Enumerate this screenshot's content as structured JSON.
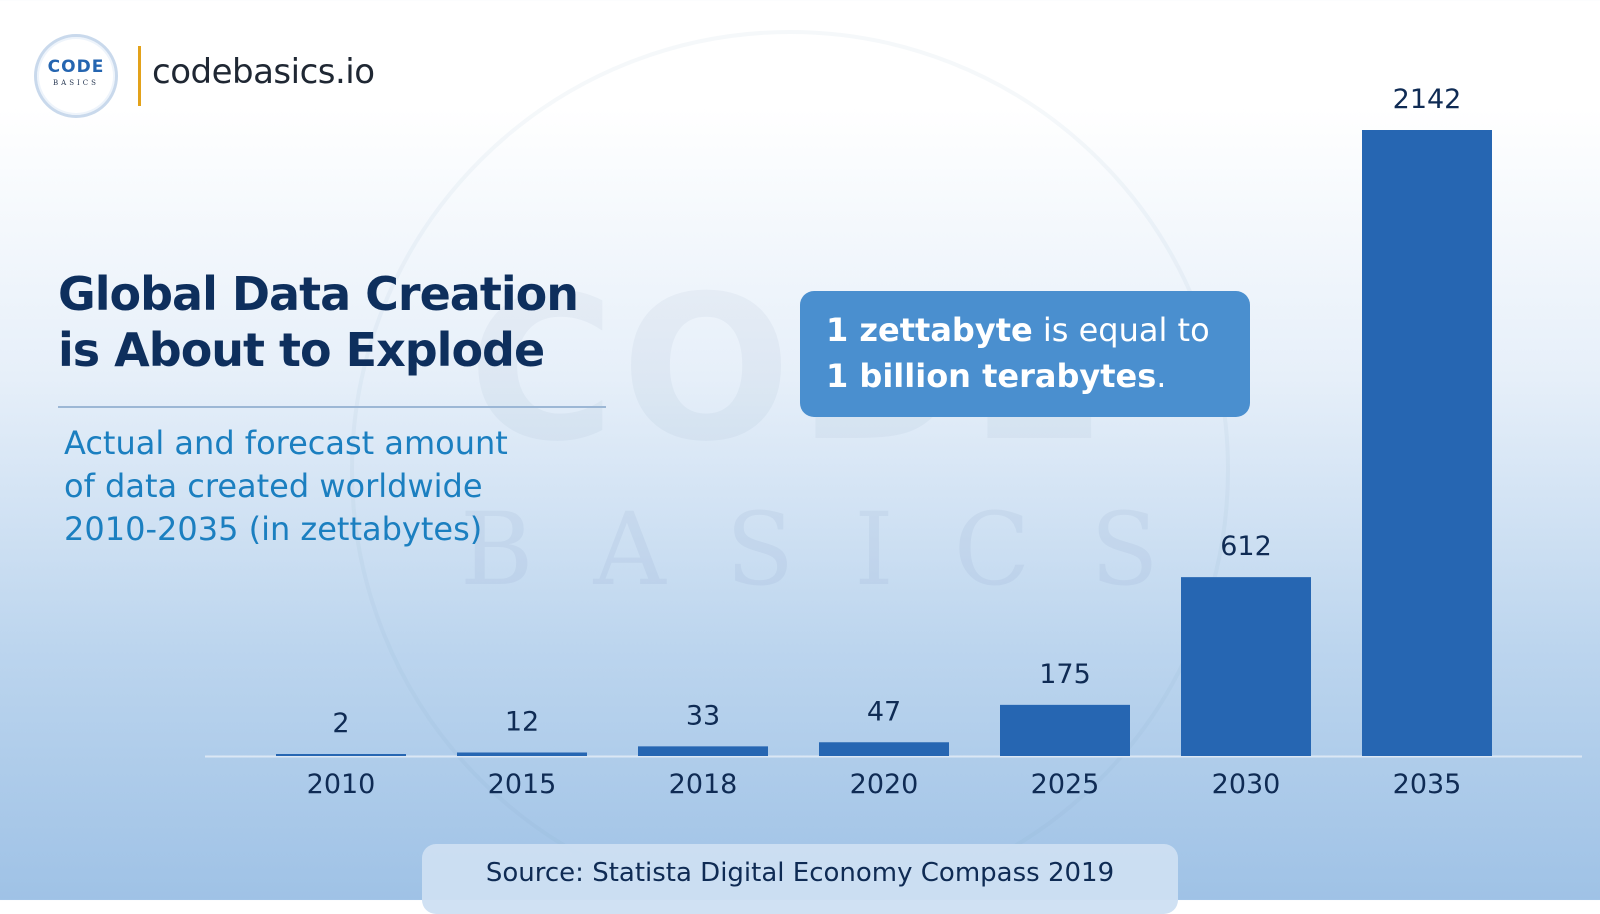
{
  "brand": {
    "logo_text_top": "CODE",
    "logo_text_bottom": "BASICS",
    "name": "codebasics.io"
  },
  "heading": {
    "line1": "Global Data Creation",
    "line2": "is About to Explode",
    "subtitle_line1": "Actual and forecast amount",
    "subtitle_line2": "of data created worldwide",
    "subtitle_line3": "2010-2035 (in zettabytes)"
  },
  "callout": {
    "line1_bold": "1 zettabyte",
    "line1_rest": " is equal to",
    "line2_bold": "1 billion terabytes",
    "line2_rest": "."
  },
  "source": "Source: Statista Digital Economy Compass 2019",
  "colors": {
    "bar": "#2666b2",
    "title": "#0e2f5d",
    "subtitle": "#1b7fc0",
    "callout_bg": "#4a8fcf",
    "logo_divider": "#e3a21a"
  },
  "chart_data": {
    "type": "bar",
    "categories": [
      "2010",
      "2015",
      "2018",
      "2020",
      "2025",
      "2030",
      "2035"
    ],
    "values": [
      2,
      12,
      33,
      47,
      175,
      612,
      2142
    ],
    "data_labels": [
      "2",
      "12",
      "33",
      "47",
      "175",
      "612",
      "2142"
    ],
    "unit": "zettabytes",
    "ylim": [
      0,
      2142
    ],
    "grid": false,
    "legend": "none"
  }
}
